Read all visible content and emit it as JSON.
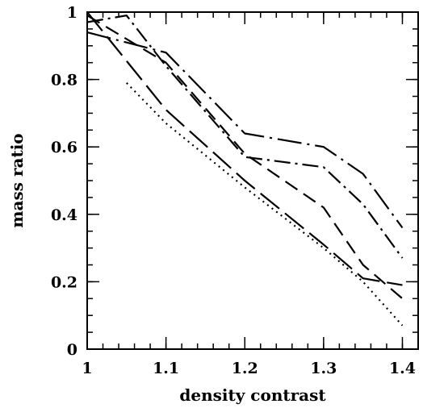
{
  "chart_data": {
    "type": "line",
    "title": "",
    "xlabel": "density contrast",
    "ylabel": "mass ratio",
    "xlim": [
      1,
      1.42
    ],
    "ylim": [
      0,
      1
    ],
    "x_major_ticks": [
      1,
      1.1,
      1.2,
      1.3,
      1.4
    ],
    "x_tick_labels": [
      "1",
      "1.1",
      "1.2",
      "1.3",
      "1.4"
    ],
    "x_minor_step": 0.02,
    "y_major_ticks": [
      0,
      0.2,
      0.4,
      0.6,
      0.8,
      1
    ],
    "y_tick_labels": [
      "0",
      "0.2",
      "0.4",
      "0.6",
      "0.8",
      "1"
    ],
    "y_minor_step": 0.05,
    "grid": false,
    "legend": "none",
    "series": [
      {
        "style": "dotted",
        "x": [
          1.05,
          1.1,
          1.2,
          1.3,
          1.35,
          1.4
        ],
        "y": [
          0.79,
          0.67,
          0.48,
          0.3,
          0.2,
          0.07
        ]
      },
      {
        "style": "long-dash",
        "x": [
          1,
          1.1,
          1.2,
          1.3,
          1.35,
          1.4
        ],
        "y": [
          1.0,
          0.71,
          0.5,
          0.31,
          0.21,
          0.19
        ]
      },
      {
        "style": "dash",
        "x": [
          1,
          1.1,
          1.2,
          1.3,
          1.35,
          1.4
        ],
        "y": [
          0.99,
          0.85,
          0.58,
          0.42,
          0.25,
          0.15
        ]
      },
      {
        "style": "dash-dot",
        "x": [
          1,
          1.05,
          1.1,
          1.2,
          1.3,
          1.35,
          1.4
        ],
        "y": [
          0.97,
          0.99,
          0.84,
          0.57,
          0.54,
          0.43,
          0.27
        ]
      },
      {
        "style": "long-dash-dot",
        "x": [
          1,
          1.1,
          1.2,
          1.3,
          1.35,
          1.4
        ],
        "y": [
          0.94,
          0.88,
          0.64,
          0.6,
          0.52,
          0.36
        ]
      }
    ]
  }
}
